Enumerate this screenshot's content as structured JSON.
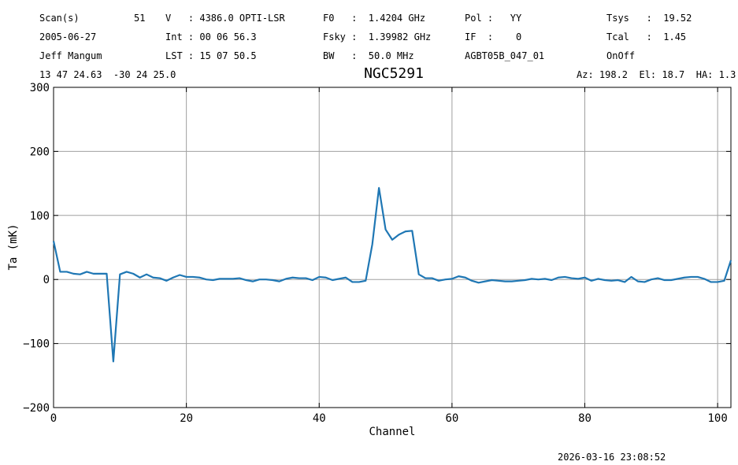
{
  "chart_data": {
    "type": "line",
    "title": "NGC5291",
    "header": [
      [
        "Scan(s)",
        "51",
        "V   : 4386.0 OPTI-LSR",
        "F0   :  1.4204 GHz",
        "Pol :   YY",
        "Tsys   :  19.52"
      ],
      [
        "2005-06-27",
        null,
        "Int : 00 06 56.3",
        "Fsky :  1.39982 GHz",
        "IF  :    0",
        "Tcal   :  1.45"
      ],
      [
        "Jeff Mangum",
        null,
        "LST : 15 07 50.5",
        "BW   :  50.0 MHz",
        "AGBT05B_047_01",
        "OnOff"
      ]
    ],
    "coordinates": "13 47 24.63  -30 24 25.0",
    "pointing": "Az: 198.2  El: 18.7  HA: 1.3",
    "timestamp": "2026-03-16 23:08:52",
    "x_label": "Channel",
    "y_label": "Ta (mK)",
    "xlim": [
      0,
      102
    ],
    "ylim": [
      -200,
      300
    ],
    "xticks": [
      0,
      20,
      40,
      60,
      80,
      100
    ],
    "yticks": [
      {
        "value": -200,
        "label": "−200"
      },
      {
        "value": -100,
        "label": "−100"
      },
      0,
      100,
      200,
      300
    ],
    "grid": true,
    "x": [
      0,
      1,
      2,
      3,
      4,
      5,
      6,
      7,
      8,
      9,
      10,
      11,
      12,
      13,
      14,
      15,
      16,
      17,
      18,
      19,
      20,
      21,
      22,
      23,
      24,
      25,
      26,
      27,
      28,
      29,
      30,
      31,
      32,
      33,
      34,
      35,
      36,
      37,
      38,
      39,
      40,
      41,
      42,
      43,
      44,
      45,
      46,
      47,
      48,
      49,
      50,
      51,
      52,
      53,
      54,
      55,
      56,
      57,
      58,
      59,
      60,
      61,
      62,
      63,
      64,
      65,
      66,
      67,
      68,
      69,
      70,
      71,
      72,
      73,
      74,
      75,
      76,
      77,
      78,
      79,
      80,
      81,
      82,
      83,
      84,
      85,
      86,
      87,
      88,
      89,
      90,
      91,
      92,
      93,
      94,
      95,
      96,
      97,
      98,
      99,
      100,
      101,
      102
    ],
    "series": [
      {
        "color": "#1f77b4",
        "values": [
          60,
          12,
          12,
          9,
          8,
          12,
          9,
          9,
          9,
          -128,
          8,
          12,
          9,
          3,
          8,
          3,
          2,
          -2,
          3,
          7,
          4,
          4,
          3,
          0,
          -1,
          1,
          1,
          1,
          2,
          -1,
          -3,
          0,
          0,
          -1,
          -3,
          1,
          3,
          2,
          2,
          -1,
          4,
          3,
          -1,
          1,
          3,
          -4,
          -4,
          -2,
          55,
          143,
          78,
          62,
          70,
          75,
          76,
          8,
          2,
          2,
          -2,
          0,
          1,
          5,
          3,
          -2,
          -5,
          -3,
          -1,
          -2,
          -3,
          -3,
          -2,
          -1,
          1,
          0,
          1,
          -1,
          3,
          4,
          2,
          1,
          3,
          -2,
          1,
          -1,
          -2,
          -1,
          -4,
          4,
          -3,
          -4,
          0,
          2,
          -1,
          -1,
          1,
          3,
          4,
          4,
          1,
          -4,
          -4,
          -2,
          30
        ]
      }
    ]
  }
}
